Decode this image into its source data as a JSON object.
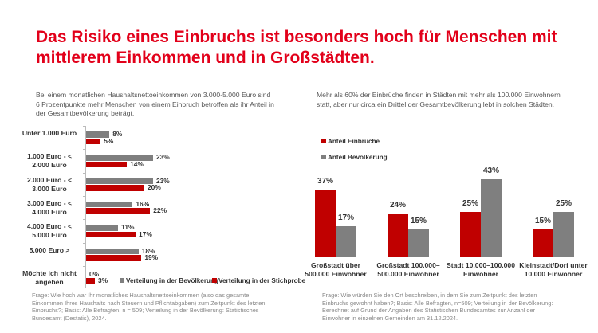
{
  "title": "Das Risiko eines Einbruchs ist besonders hoch für Menschen mit mittlerem Einkommen und in Großstädten.",
  "left_intro": "Bei einem monatlichen Haushaltsnettoeinkommen von 3.000-5.000 Euro sind 6 Prozentpunkte mehr Menschen von einem Einbruch betroffen als ihr Anteil in der Gesamtbevölkerung beträgt.",
  "right_intro": "Mehr als 60% der Einbrüche finden in Städten mit mehr als 100.000 Einwohnern statt, aber nur circa ein Drittel der Gesamtbevölkerung lebt in solchen Städten.",
  "left_note": "Frage: Wie hoch war Ihr monatliches Haushaltsnettoeinkommen (also das gesamte Einkommen Ihres  Haushalts nach Steuern und Pflichtabgaben) zum Zeitpunkt des letzten Einbruchs?; Basis: Alle Befragten, n = 509; Verteilung in der Bevölkerung: Statistisches Bundesamt (Destatis), 2024.",
  "right_note": "Frage: Wie würden Sie den Ort beschreiben, in dem Sie zum Zeitpunkt des letzten Einbruchs gewohnt haben?; Basis: Alle Befragten, n=509; Verteilung in der Bevölkerung: Berechnet auf Grund der Angaben des Statistischen Bundesamtes zur Anzahl der Einwohner in einzelnen Gemeinden am 31.12.2024.",
  "colors": {
    "red": "#c00000",
    "gray": "#7f7f7f",
    "title": "#e2001a"
  },
  "chart_data": [
    {
      "type": "bar",
      "orientation": "horizontal",
      "categories": [
        "Unter 1.000 Euro",
        "1.000 Euro - < 2.000 Euro",
        "2.000 Euro - < 3.000 Euro",
        "3.000 Euro - < 4.000 Euro",
        "4.000 Euro - < 5.000 Euro",
        "5.000 Euro >",
        "Möchte ich nicht angeben"
      ],
      "series": [
        {
          "name": "Verteilung in der Bevölkerung",
          "color": "#7f7f7f",
          "values": [
            8,
            23,
            23,
            16,
            11,
            18,
            0
          ],
          "labels": [
            "8%",
            "23%",
            "23%",
            "16%",
            "11%",
            "18%",
            "0%"
          ]
        },
        {
          "name": "Verteilung in der Stichprobe",
          "color": "#c00000",
          "values": [
            5,
            14,
            20,
            22,
            17,
            19,
            3
          ],
          "labels": [
            "5%",
            "14%",
            "20%",
            "22%",
            "17%",
            "19%",
            "3%"
          ]
        }
      ],
      "legend": "bottom"
    },
    {
      "type": "bar",
      "orientation": "vertical",
      "categories": [
        "Großstadt über 500.000 Einwohner",
        "Großstadt 100.000–500.000 Einwohner",
        "Stadt 10.000–100.000 Einwohner",
        "Kleinstadt/Dorf unter 10.000 Einwohner"
      ],
      "series": [
        {
          "name": "Anteil Einbrüche",
          "color": "#c00000",
          "values": [
            37,
            24,
            25,
            15
          ],
          "labels": [
            "37%",
            "24%",
            "25%",
            "15%"
          ]
        },
        {
          "name": "Anteil Bevölkerung",
          "color": "#7f7f7f",
          "values": [
            17,
            15,
            43,
            25
          ],
          "labels": [
            "17%",
            "15%",
            "43%",
            "25%"
          ]
        }
      ],
      "legend": "top-left"
    }
  ]
}
